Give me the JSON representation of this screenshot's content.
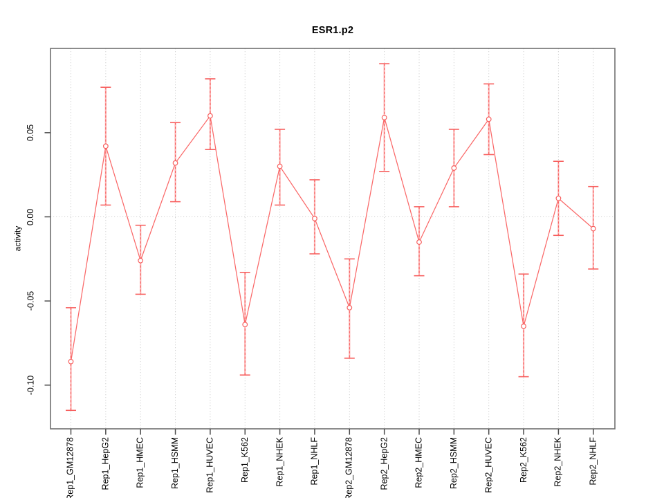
{
  "chart_data": {
    "type": "line",
    "title": "ESR1.p2",
    "xlabel": "",
    "ylabel": "activity",
    "categories": [
      "Rep1_GM12878",
      "Rep1_HepG2",
      "Rep1_HMEC",
      "Rep1_HSMM",
      "Rep1_HUVEC",
      "Rep1_K562",
      "Rep1_NHEK",
      "Rep1_NHLF",
      "Rep2_GM12878",
      "Rep2_HepG2",
      "Rep2_HMEC",
      "Rep2_HSMM",
      "Rep2_HUVEC",
      "Rep2_K562",
      "Rep2_NHEK",
      "Rep2_NHLF"
    ],
    "series": [
      {
        "name": "activity",
        "values": [
          -0.086,
          0.042,
          -0.026,
          0.032,
          0.06,
          -0.064,
          0.03,
          -0.001,
          -0.054,
          0.059,
          -0.015,
          0.029,
          0.058,
          -0.065,
          0.011,
          -0.007
        ],
        "ci_low": [
          -0.115,
          0.007,
          -0.046,
          0.009,
          0.04,
          -0.094,
          0.007,
          -0.022,
          -0.084,
          0.027,
          -0.035,
          0.006,
          0.037,
          -0.095,
          -0.011,
          -0.031
        ],
        "ci_high": [
          -0.054,
          0.077,
          -0.005,
          0.056,
          0.082,
          -0.033,
          0.052,
          0.022,
          -0.025,
          0.091,
          0.006,
          0.052,
          0.079,
          -0.034,
          0.033,
          0.018
        ]
      }
    ],
    "ytick_values": [
      0.05,
      0.0,
      -0.05,
      -0.1
    ],
    "ytick_labels": [
      "0.05",
      "0.00",
      "-0.05",
      "-0.10"
    ],
    "ylim": [
      -0.126,
      0.1
    ],
    "marker": "open-circle",
    "error_bars": true,
    "legend": "none",
    "layout_hints": {
      "grid_vertical": "dotted line at every category",
      "grid_horizontal_at": 0,
      "x_labels_rotated": true,
      "y_labels_rotated": true
    },
    "colors": {
      "series_line": "#FA6868",
      "marker_stroke": "#F7605F",
      "errorbar": "#F7605F",
      "errorbar_underlay": "#FCB4B4",
      "grid": "#CFCFCF",
      "box": "#6F6F6F",
      "tick": "#4A4A4A",
      "text": "#000000",
      "background": "#FFFFFF"
    }
  }
}
